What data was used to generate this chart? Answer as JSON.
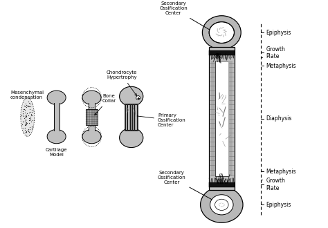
{
  "background_color": "#ffffff",
  "fig_width": 4.74,
  "fig_height": 3.3,
  "dpi": 100,
  "gray_light": "#c0c0c0",
  "gray_medium": "#999999",
  "gray_dark": "#666666",
  "gray_epiphysis": "#b8b8b8",
  "line_color": "#000000",
  "text_color": "#000000",
  "labels": {
    "mesenchymal_condensation": "Mesenchymal\ncondensation",
    "cartilage_model": "Cartilage\nModel",
    "bone_collar": "Bone\nCollar",
    "chondrocyte_hypertrophy": "Chondrocyte\nHypertrophy",
    "primary_ossification": "Primary\nOssification\nCenter",
    "secondary_ossification_top": "Secondary\nOssification\nCenter",
    "secondary_ossification_bottom": "Secondary\nOssification\nCenter",
    "epiphysis_top": "Epiphysis",
    "growth_plate_top": "Growth\nPlate",
    "metaphysis_top": "Metaphysis",
    "diaphysis": "Diaphysis",
    "metaphysis_bottom": "Metaphysis",
    "growth_plate_bottom": "Growth\nPlate",
    "epiphysis_bottom": "Epiphysis"
  }
}
